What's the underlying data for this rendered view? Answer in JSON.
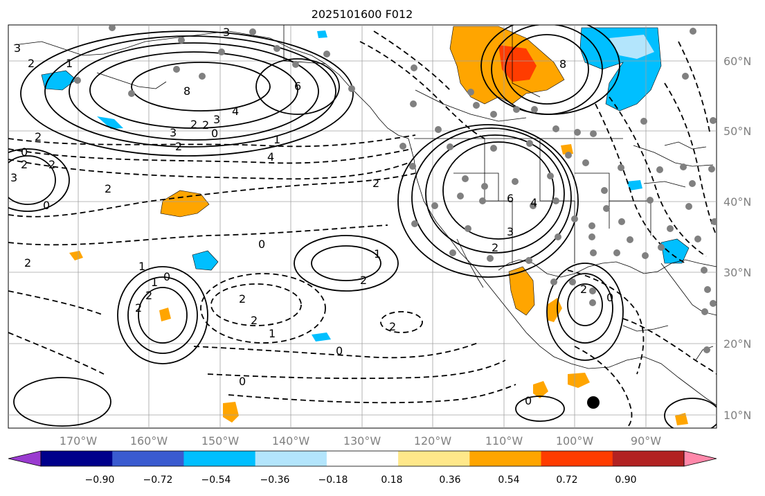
{
  "title": "2025101600 F012",
  "lon_labels": [
    "170°W",
    "160°W",
    "150°W",
    "140°W",
    "130°W",
    "120°W",
    "110°W",
    "100°W",
    "90°W"
  ],
  "lat_labels": [
    "60°N",
    "50°N",
    "40°N",
    "30°N",
    "20°N",
    "10°N"
  ],
  "colorbar": {
    "ticks": [
      "−0.90",
      "−0.72",
      "−0.54",
      "−0.36",
      "−0.18",
      "0.18",
      "0.36",
      "0.54",
      "0.72",
      "0.90"
    ],
    "colors": [
      "#9a3bd0",
      "#00008b",
      "#3a5bd0",
      "#00bfff",
      "#b3e5fc",
      "#ffffff",
      "#ffe88a",
      "#ffa500",
      "#ff3c00",
      "#b22222",
      "#ff88aa"
    ]
  },
  "contour_labels": [
    "3",
    "3",
    "2",
    "1",
    "8",
    "6",
    "4",
    "3",
    "2",
    "2",
    "0",
    "2",
    "3",
    "2",
    "1",
    "0",
    "4",
    "2",
    "0",
    "2",
    "2",
    "2",
    "3",
    "1",
    "1",
    "2",
    "0",
    "1",
    "2",
    "2",
    "0",
    "2",
    "2",
    "2",
    "2",
    "6",
    "4",
    "3",
    "2",
    "2",
    "0",
    "1",
    "0",
    "0",
    "0",
    "8"
  ],
  "colors": {
    "contour": "#000000",
    "axis_label": "#808080",
    "grid": "#a0a0a0",
    "station_dot": "#808080"
  }
}
